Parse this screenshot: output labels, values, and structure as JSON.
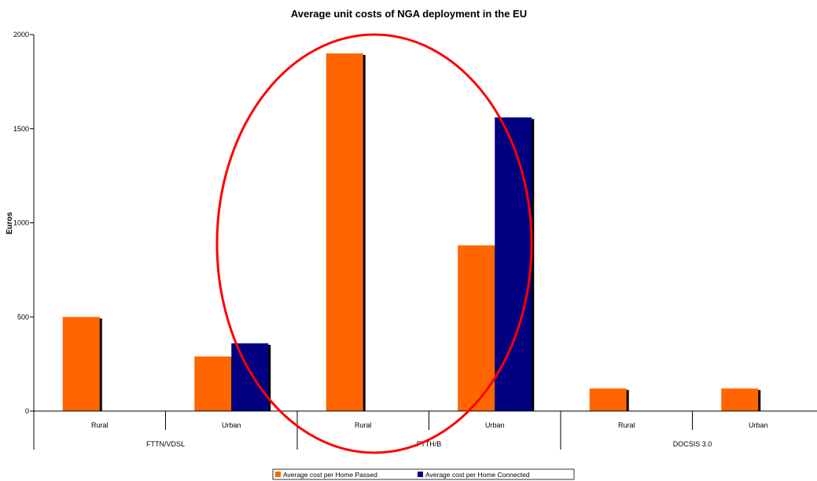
{
  "chart_data": {
    "type": "bar",
    "title": "Average unit costs of NGA deployment in the EU",
    "ylabel": "Euros",
    "xlabel": "",
    "ylim": [
      0,
      2000
    ],
    "yticks": [
      "0",
      "500",
      "1000",
      "1500",
      "2000"
    ],
    "groups": [
      "FTTN/VDSL",
      "FTTH/B",
      "DOCSIS 3.0"
    ],
    "categories": [
      "Rural",
      "Urban",
      "Rural",
      "Urban",
      "Rural",
      "Urban"
    ],
    "series": [
      {
        "name": "Average cost per Home Passed",
        "color": "#ff6600",
        "values": [
          500,
          290,
          1900,
          880,
          120,
          120
        ]
      },
      {
        "name": "Average cost per Home Connected",
        "color": "#000080",
        "values": [
          null,
          360,
          null,
          1560,
          null,
          null
        ]
      }
    ],
    "grid": false,
    "legend_position": "bottom-center",
    "annotation": {
      "shape": "ellipse",
      "color": "#ff0000",
      "encloses": "FTTH/B"
    }
  }
}
